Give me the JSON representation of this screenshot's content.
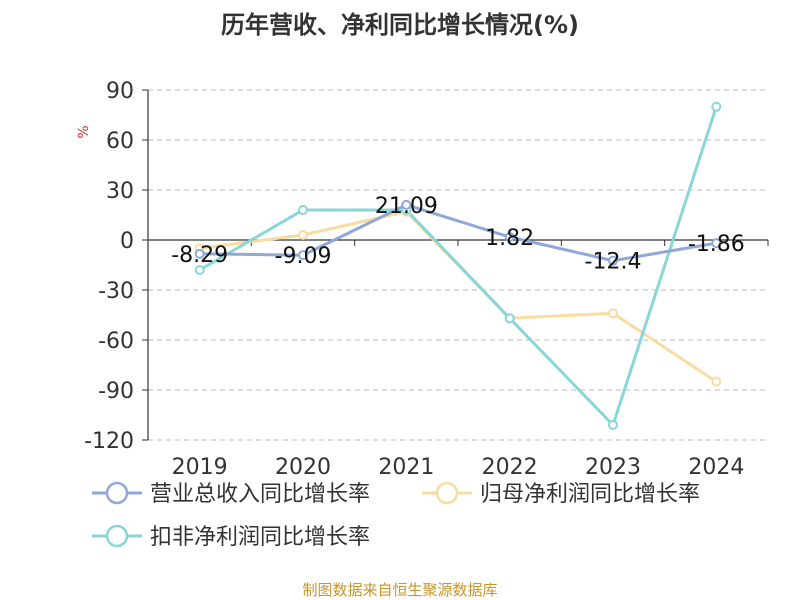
{
  "chart_data": {
    "type": "line",
    "title": "历年营收、净利同比增长情况(%)",
    "ylabel": "%",
    "categories": [
      "2019",
      "2020",
      "2021",
      "2022",
      "2023",
      "2024"
    ],
    "ylim": [
      -120,
      90
    ],
    "yticks": [
      90,
      60,
      30,
      0,
      -30,
      -60,
      -90,
      -120
    ],
    "grid": true,
    "legend_position": "bottom",
    "series": [
      {
        "name": "营业总收入同比增长率",
        "color": "#8fa8d8",
        "values": [
          -8.29,
          -9.09,
          21.09,
          1.82,
          -12.4,
          -1.86
        ],
        "labels": [
          "-8.29",
          "-9.09",
          "21.09",
          "1.82",
          "-12.4",
          "-1.86"
        ]
      },
      {
        "name": "归母净利润同比增长率",
        "color": "#f9dca0",
        "values": [
          -5,
          3,
          17,
          -47,
          -44,
          -85
        ]
      },
      {
        "name": "扣非净利润同比增长率",
        "color": "#8ad6d6",
        "values": [
          -18,
          18,
          18,
          -47,
          -111,
          80
        ]
      }
    ]
  },
  "source": "制图数据来自恒生聚源数据库"
}
